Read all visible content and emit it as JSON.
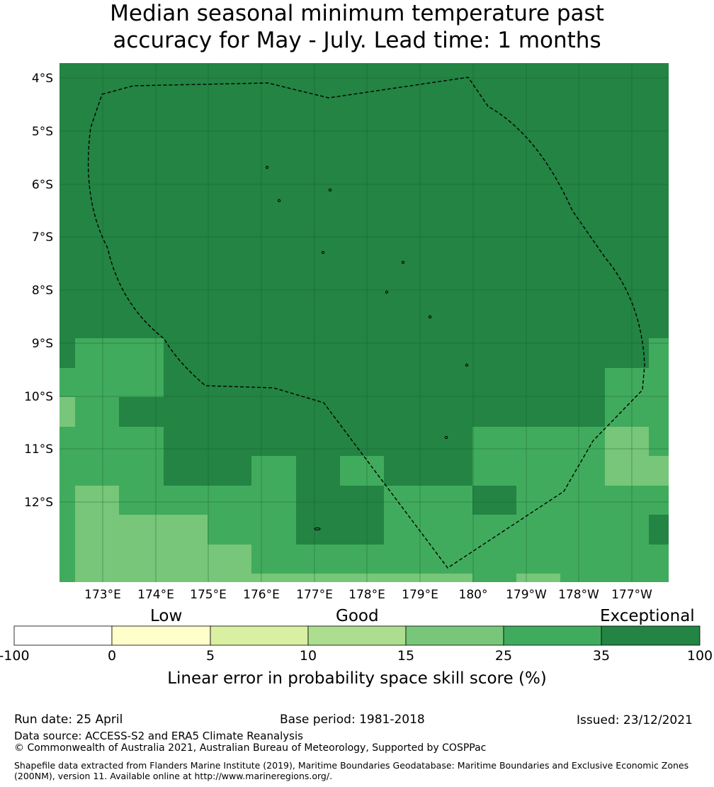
{
  "title": {
    "line1": "Median seasonal minimum temperature past",
    "line2": "accuracy for May - July. Lead time: 1 months"
  },
  "map": {
    "lat_labels": [
      "4°S",
      "5°S",
      "6°S",
      "7°S",
      "8°S",
      "9°S",
      "10°S",
      "11°S",
      "12°S"
    ],
    "lon_labels": [
      "173°E",
      "174°E",
      "175°E",
      "176°E",
      "177°E",
      "178°E",
      "179°E",
      "180°",
      "179°W",
      "178°W",
      "177°W"
    ],
    "colors": {
      "exceptional": "#238443",
      "very_good": "#41ab5d",
      "good_upper": "#78c679",
      "good": "#addd8e",
      "low_upper": "#d9f0a3",
      "low": "#ffffcc",
      "none": "#ffffff"
    },
    "border_style": "dashed black line (EEZ boundary)"
  },
  "legend": {
    "categories": [
      "Low",
      "Good",
      "Exceptional"
    ],
    "ticks": [
      "-100",
      "0",
      "5",
      "10",
      "15",
      "25",
      "35",
      "100"
    ],
    "colors": [
      "#ffffff",
      "#ffffcc",
      "#d9f0a3",
      "#addd8e",
      "#78c679",
      "#41ab5d",
      "#238443"
    ],
    "title": "Linear error in probability space skill score (%)"
  },
  "footer": {
    "run_date": "Run date: 25 April",
    "base_period": "Base period: 1981-2018",
    "issued": "Issued: 23/12/2021",
    "data_source": "Data source: ACCESS-S2 and ERA5 Climate Reanalysis",
    "copyright": "© Commonwealth of Australia 2021, Australian Bureau of Meteorology, Supported by COSPPac",
    "shapefile": "Shapefile data extracted from Flanders Marine Institute (2019), Maritime Boundaries Geodatabase: Maritime Boundaries and Exclusive Economic Zones (200NM), version 11. Available online at http://www.marineregions.org/."
  }
}
